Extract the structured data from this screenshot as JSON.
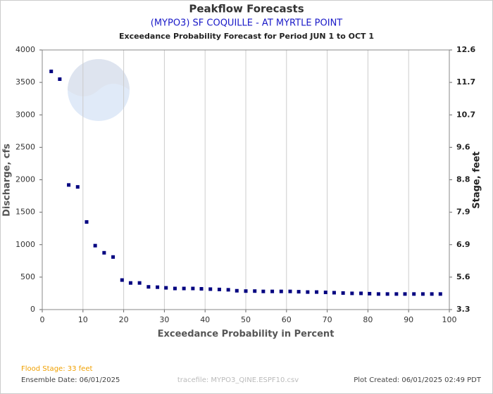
{
  "chart_data": {
    "type": "scatter",
    "title": "Peakflow Forecasts",
    "subtitle": "(MYPO3) SF COQUILLE - AT MYRTLE POINT",
    "subtitle2": "Exceedance Probability Forecast for Period JUN 1 to OCT 1",
    "xlabel": "Exceedance Probability in Percent",
    "ylabel": "Discharge, cfs",
    "y2label": "Stage, feet",
    "x": [
      2.2,
      4.3,
      6.5,
      8.7,
      10.9,
      13.0,
      15.2,
      17.4,
      19.6,
      21.7,
      23.9,
      26.1,
      28.3,
      30.4,
      32.6,
      34.8,
      37.0,
      39.1,
      41.3,
      43.5,
      45.7,
      47.8,
      50.0,
      52.2,
      54.3,
      56.5,
      58.7,
      60.9,
      63.0,
      65.2,
      67.4,
      69.6,
      71.7,
      73.9,
      76.1,
      78.3,
      80.4,
      82.6,
      84.8,
      87.0,
      89.1,
      91.3,
      93.5,
      95.7,
      97.8
    ],
    "series": [
      {
        "name": "Discharge",
        "color": "#000080",
        "values": [
          3670,
          3550,
          1920,
          1890,
          1350,
          985,
          875,
          810,
          455,
          410,
          410,
          350,
          345,
          335,
          325,
          325,
          325,
          320,
          315,
          310,
          305,
          290,
          285,
          285,
          280,
          280,
          280,
          280,
          275,
          270,
          270,
          265,
          260,
          255,
          250,
          250,
          245,
          240,
          240,
          240,
          240,
          240,
          240,
          240,
          240
        ]
      }
    ],
    "xlim": [
      0,
      100
    ],
    "xticks": [
      0,
      10,
      20,
      30,
      40,
      50,
      60,
      70,
      80,
      90,
      100
    ],
    "ylim": [
      0,
      4000
    ],
    "yticks": [
      0,
      500,
      1000,
      1500,
      2000,
      2500,
      3000,
      3500,
      4000
    ],
    "y2ticks": [
      3.3,
      5.6,
      6.9,
      7.9,
      8.8,
      9.6,
      10.7,
      11.7,
      12.6
    ],
    "grid": "x",
    "footer": {
      "flood_stage": "Flood Stage: 33 feet",
      "ensemble_date": "Ensemble Date: 06/01/2025",
      "tracefile": "tracefile: MYPO3_QINE.ESPF10.csv",
      "plot_created": "Plot Created: 06/01/2025 02:49 PDT"
    }
  }
}
